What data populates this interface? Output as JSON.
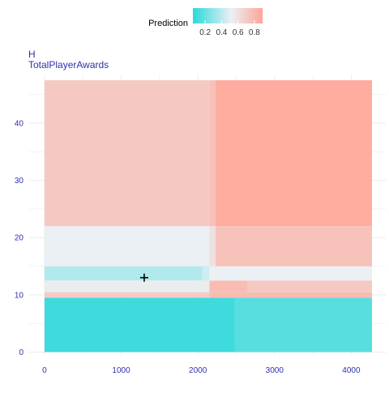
{
  "chart_data": {
    "type": "heatmap",
    "legend": {
      "title": "Prediction",
      "position": "top",
      "ticks": [
        0.2,
        0.4,
        0.6,
        0.8
      ],
      "tick_labels": [
        "0.2",
        "0.4",
        "0.6",
        "0.8"
      ],
      "range": [
        0.05,
        0.9
      ],
      "colors": {
        "low": "#2bd9d9",
        "mid": "#eaf0f4",
        "high": "#ffa495"
      }
    },
    "ylabel_line1": "H",
    "ylabel_line2": "TotalPlayerAwards",
    "xlabel": "",
    "xlim": [
      -200,
      4450
    ],
    "ylim": [
      -0.5,
      48.5
    ],
    "x_ticks": [
      0,
      1000,
      2000,
      3000,
      4000
    ],
    "x_tick_labels": [
      "0",
      "1000",
      "2000",
      "3000",
      "4000"
    ],
    "y_ticks": [
      0,
      10,
      20,
      30,
      40
    ],
    "y_tick_labels": [
      "0",
      "10",
      "20",
      "30",
      "40"
    ],
    "grid": true,
    "marker": {
      "x": 1300,
      "y": 13,
      "symbol": "+"
    },
    "cells": [
      {
        "x0": 0,
        "x1": 4270,
        "y0": 0,
        "y1": 9.5,
        "v": 0.1
      },
      {
        "x0": 2480,
        "x1": 4270,
        "y0": 0,
        "y1": 9.5,
        "v": 0.16
      },
      {
        "x0": 0,
        "x1": 2150,
        "y0": 9.5,
        "y1": 10.5,
        "v": 0.7
      },
      {
        "x0": 2150,
        "x1": 4270,
        "y0": 9.5,
        "y1": 10.5,
        "v": 0.78
      },
      {
        "x0": 0,
        "x1": 2150,
        "y0": 10.5,
        "y1": 12.5,
        "v": 0.54
      },
      {
        "x0": 2150,
        "x1": 2650,
        "y0": 10.5,
        "y1": 12.5,
        "v": 0.78
      },
      {
        "x0": 2650,
        "x1": 4270,
        "y0": 10.5,
        "y1": 12.5,
        "v": 0.72
      },
      {
        "x0": 0,
        "x1": 2060,
        "y0": 12.5,
        "y1": 15,
        "v": 0.38
      },
      {
        "x0": 2060,
        "x1": 2150,
        "y0": 12.5,
        "y1": 15,
        "v": 0.45
      },
      {
        "x0": 2150,
        "x1": 4270,
        "y0": 12.5,
        "y1": 15,
        "v": 0.52
      },
      {
        "x0": 0,
        "x1": 2150,
        "y0": 15,
        "y1": 22,
        "v": 0.52
      },
      {
        "x0": 2150,
        "x1": 2230,
        "y0": 15,
        "y1": 22,
        "v": 0.6
      },
      {
        "x0": 2230,
        "x1": 4270,
        "y0": 15,
        "y1": 22,
        "v": 0.75
      },
      {
        "x0": 0,
        "x1": 2150,
        "y0": 22,
        "y1": 47.5,
        "v": 0.72
      },
      {
        "x0": 2150,
        "x1": 2230,
        "y0": 22,
        "y1": 47.5,
        "v": 0.76
      },
      {
        "x0": 2230,
        "x1": 4270,
        "y0": 22,
        "y1": 47.5,
        "v": 0.86
      }
    ]
  }
}
